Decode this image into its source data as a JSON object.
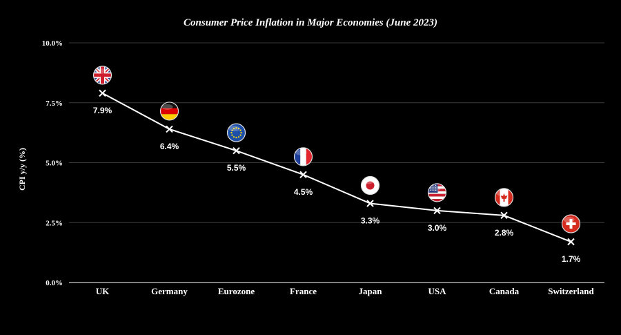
{
  "chart_data": {
    "type": "line",
    "title": "Consumer Price Inflation in Major Economies (June 2023)",
    "xlabel": "",
    "ylabel": "CPI y/y (%)",
    "categories": [
      "UK",
      "Germany",
      "Eurozone",
      "France",
      "Japan",
      "USA",
      "Canada",
      "Switzerland"
    ],
    "series": [
      {
        "name": "CPI y/y",
        "values": [
          7.9,
          6.4,
          5.5,
          4.5,
          3.3,
          3.0,
          2.8,
          1.7
        ]
      }
    ],
    "value_labels": [
      "7.9%",
      "6.4%",
      "5.5%",
      "4.5%",
      "3.3%",
      "3.0%",
      "2.8%",
      "1.7%"
    ],
    "ylim": [
      0,
      10
    ],
    "yticks": [
      0,
      2.5,
      5,
      7.5,
      10
    ],
    "ytick_labels": [
      "0.0%",
      "2.5%",
      "5.0%",
      "7.5%",
      "10.0%"
    ],
    "grid": true,
    "marker": "x",
    "flags": [
      "uk-flag",
      "germany-flag",
      "eu-flag",
      "france-flag",
      "japan-flag",
      "usa-flag",
      "canada-flag",
      "switzerland-flag"
    ]
  },
  "colors": {
    "background": "#000000",
    "line": "#ffffff",
    "grid": "#3a3a3a",
    "text": "#ffffff"
  }
}
